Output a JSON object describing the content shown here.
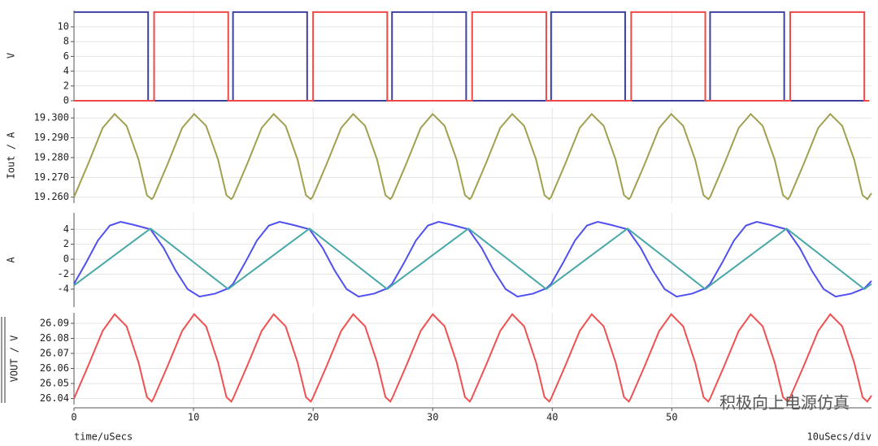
{
  "chart_data": [
    {
      "type": "line",
      "ylabel": "V",
      "xlim": [
        0,
        66.7
      ],
      "ylim": [
        0,
        12.2
      ],
      "yticks": [
        0,
        2,
        4,
        6,
        8,
        10
      ],
      "grid": true,
      "x": [
        0,
        6.2,
        6.2,
        6.7,
        6.7,
        12.9,
        12.9,
        13.3,
        13.3,
        19.5,
        19.5,
        20,
        20,
        26.2,
        26.2,
        26.6,
        26.6,
        32.8,
        32.8,
        33.3,
        33.3,
        39.5,
        39.5,
        39.9,
        39.9,
        46.1,
        46.1,
        46.6,
        46.6,
        52.8,
        52.8,
        53.2,
        53.2,
        59.4,
        59.4,
        59.9,
        59.9,
        66.1,
        66.1,
        66.5
      ],
      "series": [
        {
          "color": "#4040a0",
          "values": [
            12,
            12,
            0,
            0,
            0,
            0,
            0,
            0,
            12,
            12,
            0,
            0,
            0,
            0,
            0,
            0,
            12,
            12,
            0,
            0,
            0,
            0,
            0,
            0,
            12,
            12,
            0,
            0,
            0,
            0,
            0,
            0,
            12,
            12,
            0,
            0,
            0,
            0,
            0,
            0
          ]
        },
        {
          "color": "#f04848",
          "values": [
            0,
            0,
            0,
            0,
            12,
            12,
            0,
            0,
            0,
            0,
            0,
            0,
            12,
            12,
            0,
            0,
            0,
            0,
            0,
            0,
            12,
            12,
            0,
            0,
            0,
            0,
            0,
            0,
            12,
            12,
            0,
            0,
            0,
            0,
            0,
            0,
            12,
            12,
            0,
            0
          ]
        }
      ]
    },
    {
      "type": "line",
      "ylabel": "Iout / A",
      "xlim": [
        0,
        66.7
      ],
      "ylim": [
        19.257,
        19.305
      ],
      "yticks": [
        {
          "value": 19.26,
          "label": "19.260"
        },
        {
          "value": 19.27,
          "label": "19.270"
        },
        {
          "value": 19.28,
          "label": "19.280"
        },
        {
          "value": 19.29,
          "label": "19.290"
        },
        {
          "value": 19.3,
          "label": "19.300"
        }
      ],
      "grid": true,
      "x": [
        0,
        1.2,
        2.4,
        3.4,
        4.4,
        5.4,
        6.1,
        6.5,
        6.65,
        7.85,
        9.05,
        10.05,
        11.05,
        12.05,
        12.75,
        13.15,
        13.3,
        14.5,
        15.7,
        16.7,
        17.7,
        18.7,
        19.4,
        19.8,
        19.95,
        21.15,
        22.35,
        23.35,
        24.35,
        25.35,
        26.05,
        26.45,
        26.6,
        27.8,
        29,
        30,
        31,
        32,
        32.7,
        33.1,
        33.25,
        34.45,
        35.65,
        36.65,
        37.65,
        38.65,
        39.35,
        39.75,
        39.9,
        41.1,
        42.3,
        43.3,
        44.3,
        45.3,
        46,
        46.4,
        46.55,
        47.75,
        48.95,
        49.95,
        50.95,
        51.95,
        52.65,
        53.05,
        53.2,
        54.4,
        55.6,
        56.6,
        57.6,
        58.6,
        59.3,
        59.7,
        59.85,
        61.05,
        62.25,
        63.25,
        64.25,
        65.25,
        65.95,
        66.35,
        66.7
      ],
      "series": [
        {
          "color": "#a0a050",
          "values": [
            19.26,
            19.277,
            19.295,
            19.302,
            19.296,
            19.279,
            19.261,
            19.259,
            19.26,
            19.277,
            19.295,
            19.302,
            19.296,
            19.279,
            19.261,
            19.259,
            19.26,
            19.277,
            19.295,
            19.302,
            19.296,
            19.279,
            19.261,
            19.259,
            19.26,
            19.277,
            19.295,
            19.302,
            19.296,
            19.279,
            19.261,
            19.259,
            19.26,
            19.277,
            19.295,
            19.302,
            19.296,
            19.279,
            19.261,
            19.259,
            19.26,
            19.277,
            19.295,
            19.302,
            19.296,
            19.279,
            19.261,
            19.259,
            19.26,
            19.277,
            19.295,
            19.302,
            19.296,
            19.279,
            19.261,
            19.259,
            19.26,
            19.277,
            19.295,
            19.302,
            19.296,
            19.279,
            19.261,
            19.259,
            19.26,
            19.277,
            19.295,
            19.302,
            19.296,
            19.279,
            19.261,
            19.259,
            19.26,
            19.277,
            19.295,
            19.302,
            19.296,
            19.279,
            19.261,
            19.259,
            19.262
          ]
        }
      ]
    },
    {
      "type": "line",
      "ylabel": "A",
      "xlim": [
        0,
        66.7
      ],
      "ylim": [
        -6.4,
        6.2
      ],
      "yticks": [
        -4,
        -2,
        0,
        2,
        4
      ],
      "grid": true,
      "x": [
        0,
        1,
        2,
        3,
        3.9,
        5,
        6.4,
        7.5,
        8.5,
        9.5,
        10.5,
        11.8,
        12.9,
        13.3,
        14.3,
        15.3,
        16.3,
        17.2,
        18.3,
        19.7,
        20.8,
        21.8,
        22.8,
        23.8,
        25.1,
        26.2,
        26.6,
        27.6,
        28.6,
        29.6,
        30.5,
        31.6,
        33,
        34.1,
        35.1,
        36.1,
        37.1,
        38.4,
        39.5,
        39.9,
        40.9,
        41.9,
        42.9,
        43.8,
        44.9,
        46.3,
        47.4,
        48.4,
        49.4,
        50.4,
        51.7,
        52.8,
        53.2,
        54.2,
        55.2,
        56.2,
        57.1,
        58.2,
        59.6,
        60.7,
        61.7,
        62.7,
        63.7,
        65,
        66.1,
        66.7
      ],
      "series": [
        {
          "color": "#5050f0",
          "values": [
            -3.3,
            -0.5,
            2.5,
            4.5,
            5,
            4.6,
            4,
            1.5,
            -1.5,
            -4,
            -5,
            -4.6,
            -3.9,
            -3.3,
            -0.5,
            2.5,
            4.5,
            5,
            4.6,
            4,
            1.5,
            -1.5,
            -4,
            -5,
            -4.6,
            -3.9,
            -3.3,
            -0.5,
            2.5,
            4.5,
            5,
            4.6,
            4,
            1.5,
            -1.5,
            -4,
            -5,
            -4.6,
            -3.9,
            -3.3,
            -0.5,
            2.5,
            4.5,
            5,
            4.6,
            4,
            1.5,
            -1.5,
            -4,
            -5,
            -4.6,
            -3.9,
            -3.3,
            -0.5,
            2.5,
            4.5,
            5,
            4.6,
            4,
            1.5,
            -1.5,
            -4,
            -5,
            -4.6,
            -3.9,
            -2.9
          ]
        },
        {
          "color": "#48a8a8",
          "values": [
            -3.5,
            -2.31,
            -1.12,
            0.07,
            1.14,
            2.45,
            4.1,
            2.73,
            1.48,
            0.24,
            -1.01,
            -2.63,
            -4,
            -3.5,
            -2.31,
            -1.12,
            0.07,
            1.14,
            2.45,
            4.1,
            2.73,
            1.48,
            0.24,
            -1.01,
            -2.63,
            -4,
            -3.5,
            -2.31,
            -1.12,
            0.07,
            1.14,
            2.45,
            4.1,
            2.73,
            1.48,
            0.24,
            -1.01,
            -2.63,
            -4,
            -3.5,
            -2.31,
            -1.12,
            0.07,
            1.14,
            2.45,
            4.1,
            2.73,
            1.48,
            0.24,
            -1.01,
            -2.63,
            -4,
            -3.5,
            -2.31,
            -1.12,
            0.07,
            1.14,
            2.45,
            4.1,
            2.73,
            1.48,
            0.24,
            -1.01,
            -2.63,
            -4,
            -3.3
          ]
        }
      ]
    },
    {
      "type": "line",
      "ylabel": "VOUT / V",
      "xlabel": "time/uSecs",
      "x_division": "10uSecs/div",
      "xlim": [
        0,
        66.7
      ],
      "xticks": [
        0,
        10,
        20,
        30,
        40,
        50
      ],
      "ylim": [
        26.036,
        26.097
      ],
      "yticks": [
        26.04,
        26.05,
        26.06,
        26.07,
        26.08,
        26.09
      ],
      "grid": true,
      "x": [
        0,
        1.2,
        2.4,
        3.4,
        4.4,
        5.4,
        6.1,
        6.5,
        6.65,
        7.85,
        9.05,
        10.05,
        11.05,
        12.05,
        12.75,
        13.15,
        13.3,
        14.5,
        15.7,
        16.7,
        17.7,
        18.7,
        19.4,
        19.8,
        19.95,
        21.15,
        22.35,
        23.35,
        24.35,
        25.35,
        26.05,
        26.45,
        26.6,
        27.8,
        29,
        30,
        31,
        32,
        32.7,
        33.1,
        33.25,
        34.45,
        35.65,
        36.65,
        37.65,
        38.65,
        39.35,
        39.75,
        39.9,
        41.1,
        42.3,
        43.3,
        44.3,
        45.3,
        46,
        46.4,
        46.55,
        47.75,
        48.95,
        49.95,
        50.95,
        51.95,
        52.65,
        53.05,
        53.2,
        54.4,
        55.6,
        56.6,
        57.6,
        58.6,
        59.3,
        59.7,
        59.85,
        61.05,
        62.25,
        63.25,
        64.25,
        65.25,
        65.95,
        66.35,
        66.7
      ],
      "series": [
        {
          "color": "#f05050",
          "values": [
            26.04,
            26.062,
            26.085,
            26.096,
            26.088,
            26.064,
            26.041,
            26.038,
            26.04,
            26.062,
            26.085,
            26.096,
            26.088,
            26.064,
            26.041,
            26.038,
            26.04,
            26.062,
            26.085,
            26.096,
            26.088,
            26.064,
            26.041,
            26.038,
            26.04,
            26.062,
            26.085,
            26.096,
            26.088,
            26.064,
            26.041,
            26.038,
            26.04,
            26.062,
            26.085,
            26.096,
            26.088,
            26.064,
            26.041,
            26.038,
            26.04,
            26.062,
            26.085,
            26.096,
            26.088,
            26.064,
            26.041,
            26.038,
            26.04,
            26.062,
            26.085,
            26.096,
            26.088,
            26.064,
            26.041,
            26.038,
            26.04,
            26.062,
            26.085,
            26.096,
            26.088,
            26.064,
            26.041,
            26.038,
            26.04,
            26.062,
            26.085,
            26.096,
            26.088,
            26.064,
            26.041,
            26.038,
            26.04,
            26.062,
            26.085,
            26.096,
            26.088,
            26.064,
            26.041,
            26.038,
            26.042
          ]
        }
      ]
    }
  ],
  "watermark": "积极向上电源仿真"
}
